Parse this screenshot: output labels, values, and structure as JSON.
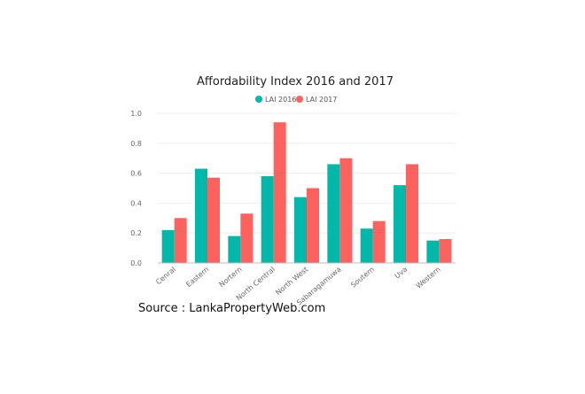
{
  "chart_data": {
    "type": "bar",
    "title": "Affordability Index 2016 and 2017",
    "categories": [
      "Cenral",
      "Eastern",
      "Nortern",
      "North Central",
      "North West",
      "Sabaragamuwa",
      "Soutern",
      "Uva",
      "Western"
    ],
    "series": [
      {
        "name": "LAI 2016",
        "color": "#01b8aa",
        "values": [
          0.22,
          0.63,
          0.18,
          0.58,
          0.44,
          0.66,
          0.23,
          0.52,
          0.15
        ]
      },
      {
        "name": "LAI 2017",
        "color": "#fd625e",
        "values": [
          0.3,
          0.57,
          0.33,
          0.94,
          0.5,
          0.7,
          0.28,
          0.66,
          0.16
        ]
      }
    ],
    "yticks": [
      "0.0",
      "0.2",
      "0.4",
      "0.6",
      "0.8",
      "1.0"
    ],
    "ylim": [
      0,
      1.0
    ],
    "grid": true,
    "legend": "top-center"
  },
  "footer": {
    "source": "Source : LankaPropertyWeb.com"
  }
}
